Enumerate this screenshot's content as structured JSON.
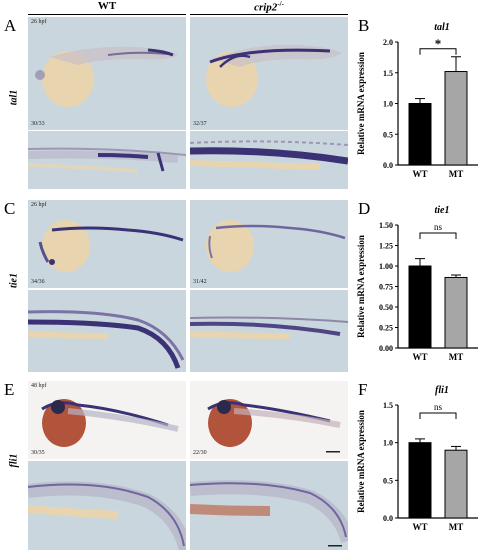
{
  "columns": {
    "wt": "WT",
    "mutant_base": "crip2",
    "mutant_sup": "-/-"
  },
  "panels": {
    "A": {
      "letter": "A",
      "gene": "tal1",
      "stage": "26 hpf",
      "wt_count": "30/33",
      "mt_count": "32/37"
    },
    "B": {
      "letter": "B"
    },
    "C": {
      "letter": "C",
      "gene": "tie1",
      "stage": "26 hpf",
      "wt_count": "34/36",
      "mt_count": "31/42"
    },
    "D": {
      "letter": "D"
    },
    "E": {
      "letter": "E",
      "gene": "fli1",
      "stage": "48 hpf",
      "wt_count": "30/35",
      "mt_count": "22/30"
    },
    "F": {
      "letter": "F"
    }
  },
  "colors": {
    "wt_bar": "#000000",
    "mt_bar": "#a6a6a6",
    "photo_bg": "#c9d6de",
    "embryo_yolk": "#e8d5b0",
    "stain": "#3a3275"
  },
  "chart_data": [
    {
      "type": "bar",
      "title": "tal1",
      "categories": [
        "WT",
        "MT"
      ],
      "values": [
        1.0,
        1.52
      ],
      "errors": [
        0.08,
        0.24
      ],
      "ylabel": "Relative mRNA expression",
      "ylim": [
        0.0,
        2.0
      ],
      "yticks": [
        "0.0",
        "0.5",
        "1.0",
        "1.5",
        "2.0"
      ],
      "significance": "*"
    },
    {
      "type": "bar",
      "title": "tie1",
      "categories": [
        "WT",
        "MT"
      ],
      "values": [
        1.0,
        0.86
      ],
      "errors": [
        0.09,
        0.03
      ],
      "ylabel": "Relative mRNA expression",
      "ylim": [
        0.0,
        1.5
      ],
      "yticks": [
        "0.00",
        "0.25",
        "0.50",
        "0.75",
        "1.00",
        "1.25",
        "1.50"
      ],
      "significance": "ns"
    },
    {
      "type": "bar",
      "title": "fli1",
      "categories": [
        "WT",
        "MT"
      ],
      "values": [
        1.0,
        0.9
      ],
      "errors": [
        0.05,
        0.05
      ],
      "ylabel": "Relative mRNA expression",
      "ylim": [
        0.0,
        1.5
      ],
      "yticks": [
        "0.0",
        "0.5",
        "1.0",
        "1.5"
      ],
      "significance": "ns"
    }
  ]
}
